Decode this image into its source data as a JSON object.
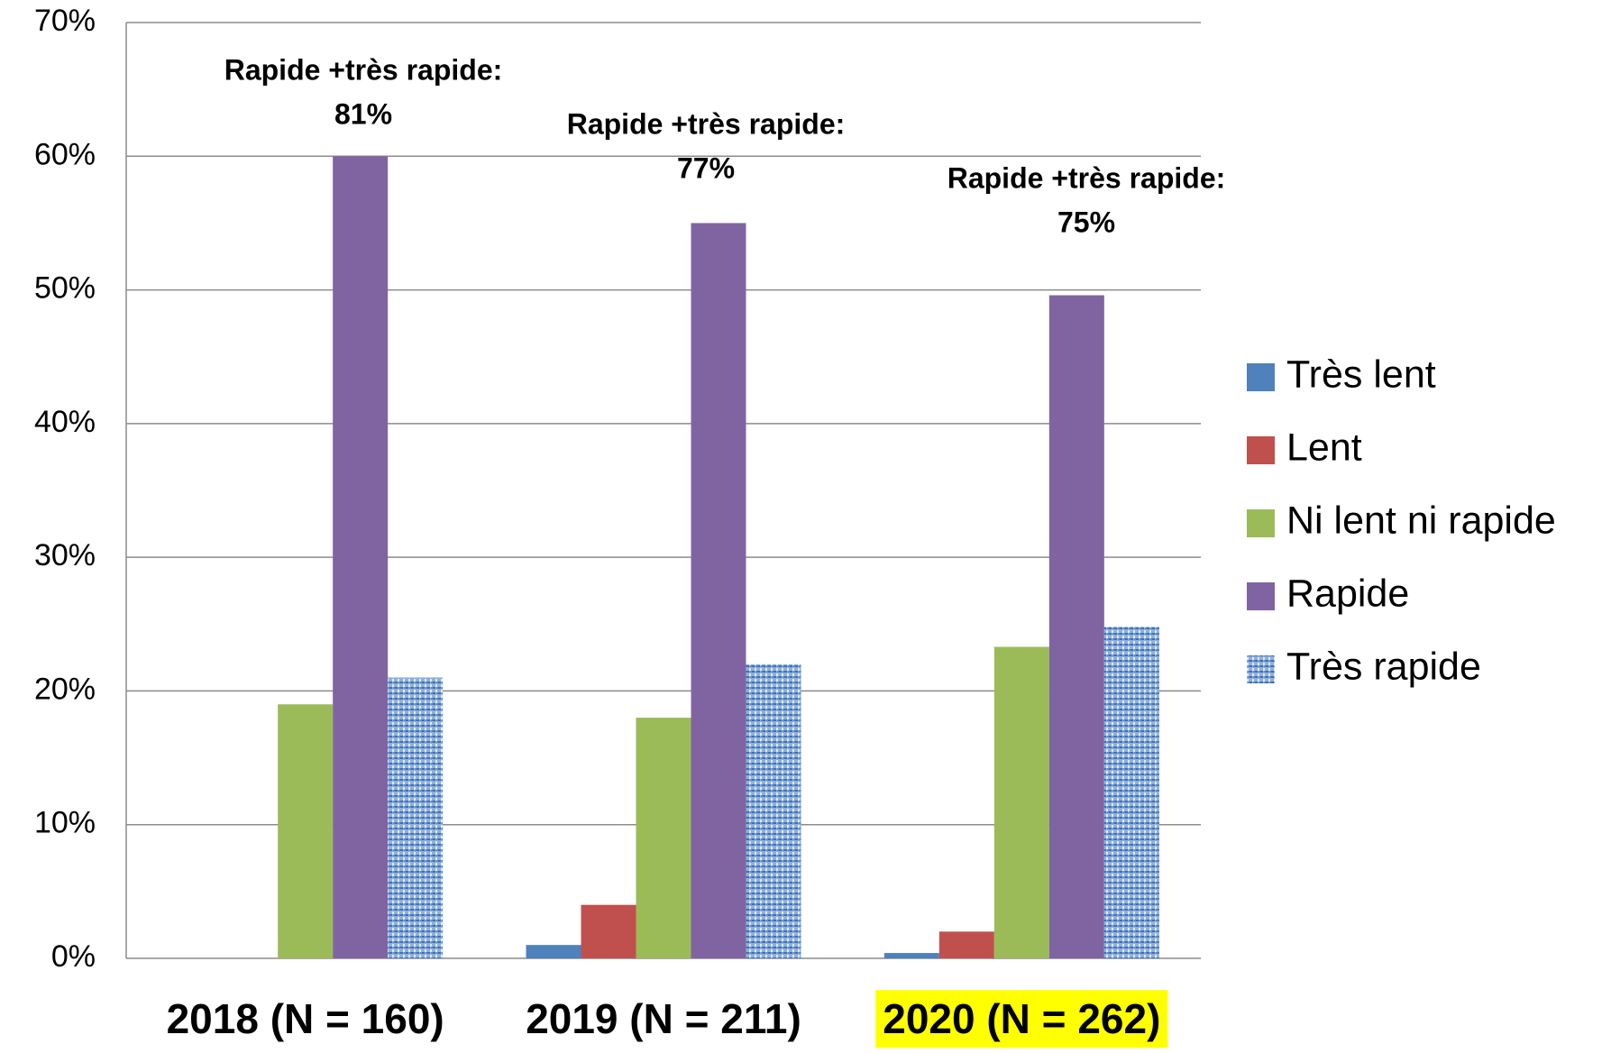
{
  "chart_data": {
    "type": "bar",
    "categories": [
      "2018 (N = 160)",
      "2019 (N = 211)",
      "2020 (N = 262)"
    ],
    "series": [
      {
        "name": "Très lent",
        "color": "#4f81bd",
        "values": [
          0,
          1,
          0.4
        ]
      },
      {
        "name": "Lent",
        "color": "#c0504d",
        "values": [
          0,
          4,
          2
        ]
      },
      {
        "name": "Ni lent ni rapide",
        "color": "#9bbb59",
        "values": [
          19,
          18,
          23.3
        ]
      },
      {
        "name": "Rapide",
        "color": "#8064a2",
        "values": [
          60,
          55,
          49.6
        ]
      },
      {
        "name": "Très rapide",
        "color": "#8fb0dc",
        "pattern": "texture",
        "values": [
          21,
          22,
          24.8
        ]
      }
    ],
    "ylim": [
      0,
      70
    ],
    "yticks": [
      {
        "value": 0,
        "label": "0%"
      },
      {
        "value": 10,
        "label": "10%"
      },
      {
        "value": 20,
        "label": "20%"
      },
      {
        "value": 30,
        "label": "30%"
      },
      {
        "value": 40,
        "label": "40%"
      },
      {
        "value": 50,
        "label": "50%"
      },
      {
        "value": 60,
        "label": "60%"
      },
      {
        "value": 70,
        "label": "70%"
      }
    ],
    "grid": true,
    "legend": "right",
    "highlight": {
      "category": 2,
      "color": "#ffff00"
    },
    "annotations": [
      {
        "label": "Rapide +très rapide:",
        "value_label": "81%"
      },
      {
        "label": "Rapide +très rapide:",
        "value_label": "77%"
      },
      {
        "label": "Rapide +très rapide:",
        "value_label": "75%"
      }
    ]
  }
}
